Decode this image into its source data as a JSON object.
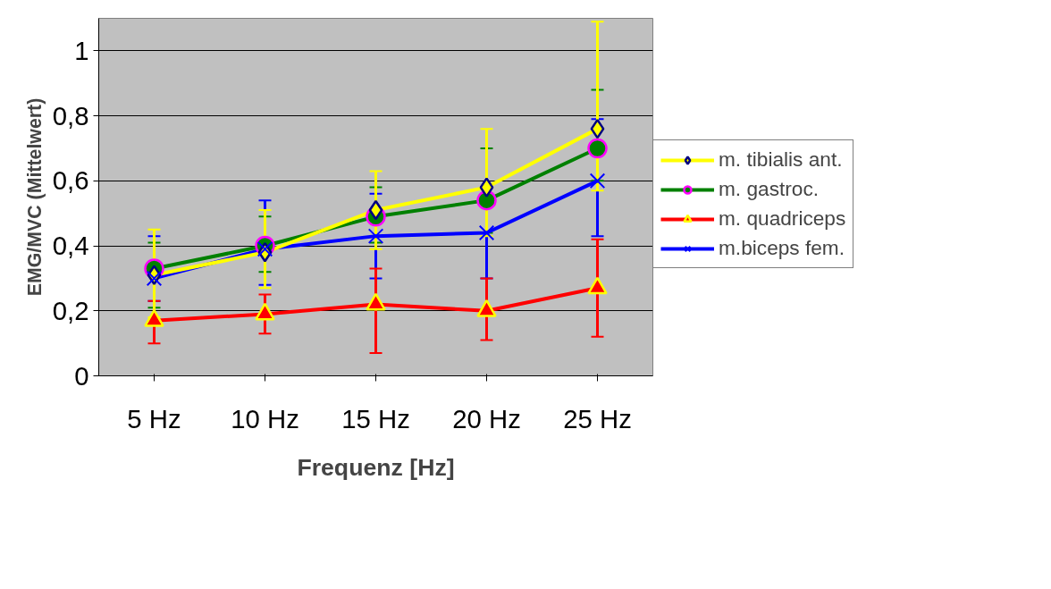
{
  "chart_data": {
    "type": "line",
    "xlabel": "Frequenz [Hz]",
    "ylabel": "EMG/MVC (Mittelwert)",
    "categories": [
      "5 Hz",
      "10 Hz",
      "15 Hz",
      "20 Hz",
      "25 Hz"
    ],
    "ylim": [
      0,
      1.1
    ],
    "yticks": [
      0,
      {
        "value": 0.2,
        "label": "0,2"
      },
      {
        "value": 0.4,
        "label": "0,4"
      },
      {
        "value": 0.6,
        "label": "0,6"
      },
      {
        "value": 0.8,
        "label": "0,8"
      },
      1
    ],
    "grid": "y",
    "legend": "right",
    "series": [
      {
        "name": "m. tibialis ant.",
        "color": "#ffff00",
        "marker": "diamond",
        "values": [
          0.31,
          0.38,
          0.51,
          0.58,
          0.76
        ],
        "errors": [
          [
            0.18,
            0.45
          ],
          [
            0.27,
            0.51
          ],
          [
            0.39,
            0.63
          ],
          [
            0.43,
            0.76
          ],
          [
            0.57,
            1.09
          ]
        ]
      },
      {
        "name": "m. gastroc.",
        "color": "#008000",
        "marker": "circle",
        "values": [
          0.33,
          0.4,
          0.49,
          0.54,
          0.7
        ],
        "errors": [
          [
            0.21,
            0.41
          ],
          [
            0.32,
            0.49
          ],
          [
            0.41,
            0.58
          ],
          [
            0.44,
            0.7
          ],
          [
            0.6,
            0.88
          ]
        ]
      },
      {
        "name": "m. quadriceps",
        "color": "#ff0000",
        "marker": "triangle",
        "values": [
          0.17,
          0.19,
          0.22,
          0.2,
          0.27
        ],
        "errors": [
          [
            0.1,
            0.23
          ],
          [
            0.13,
            0.25
          ],
          [
            0.07,
            0.33
          ],
          [
            0.11,
            0.3
          ],
          [
            0.12,
            0.42
          ]
        ]
      },
      {
        "name": "m.biceps fem.",
        "color": "#0000ff",
        "marker": "cross",
        "values": [
          0.3,
          0.39,
          0.43,
          0.44,
          0.6
        ],
        "errors": [
          [
            0.23,
            0.43
          ],
          [
            0.28,
            0.54
          ],
          [
            0.3,
            0.56
          ],
          [
            0.3,
            0.56
          ],
          [
            0.43,
            0.79
          ]
        ]
      }
    ]
  }
}
